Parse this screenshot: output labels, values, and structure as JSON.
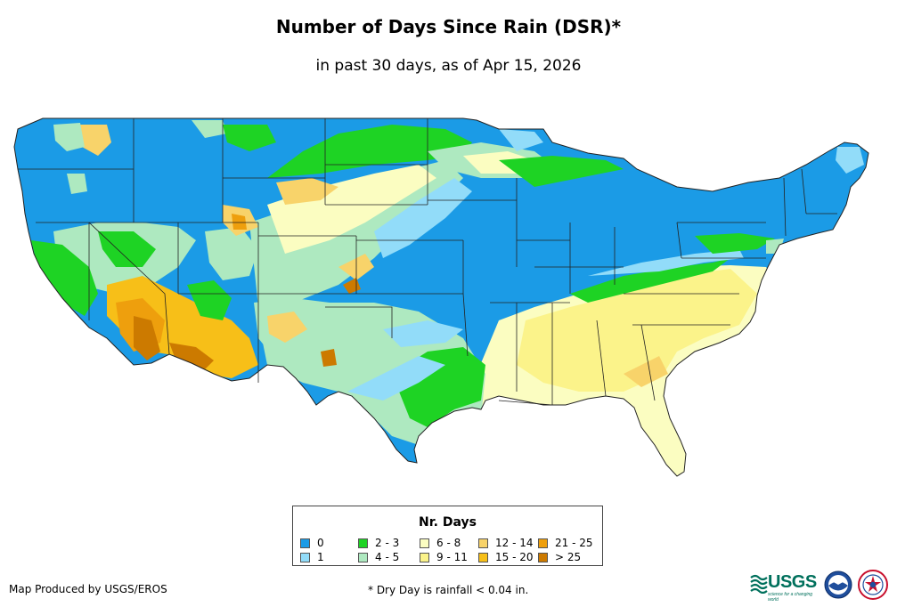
{
  "title": "Number of Days Since Rain (DSR)*",
  "subtitle": "in past 30 days, as of Apr 15, 2026",
  "legend": {
    "title": "Nr. Days",
    "items": [
      {
        "label": "0",
        "color": "#1b9be6"
      },
      {
        "label": "1",
        "color": "#92dcf9"
      },
      {
        "label": "2 - 3",
        "color": "#1ed324"
      },
      {
        "label": "4 - 5",
        "color": "#aee9c0"
      },
      {
        "label": "6 - 8",
        "color": "#fbfdc1"
      },
      {
        "label": "9 - 11",
        "color": "#fbf38a"
      },
      {
        "label": "12 - 14",
        "color": "#f8d36a"
      },
      {
        "label": "15 - 20",
        "color": "#f7bf18"
      },
      {
        "label": "21 - 25",
        "color": "#ee9f0d"
      },
      {
        "label": "> 25",
        "color": "#cc7a00"
      }
    ]
  },
  "footer": {
    "produced_by": "Map Produced by USGS/EROS",
    "note": "* Dry Day is rainfall < 0.04 in."
  },
  "logos": {
    "usgs": "USGS",
    "usgs_tagline": "science for a changing world",
    "noaa": "noaa-logo-icon",
    "nws": "nws-logo-icon"
  }
}
